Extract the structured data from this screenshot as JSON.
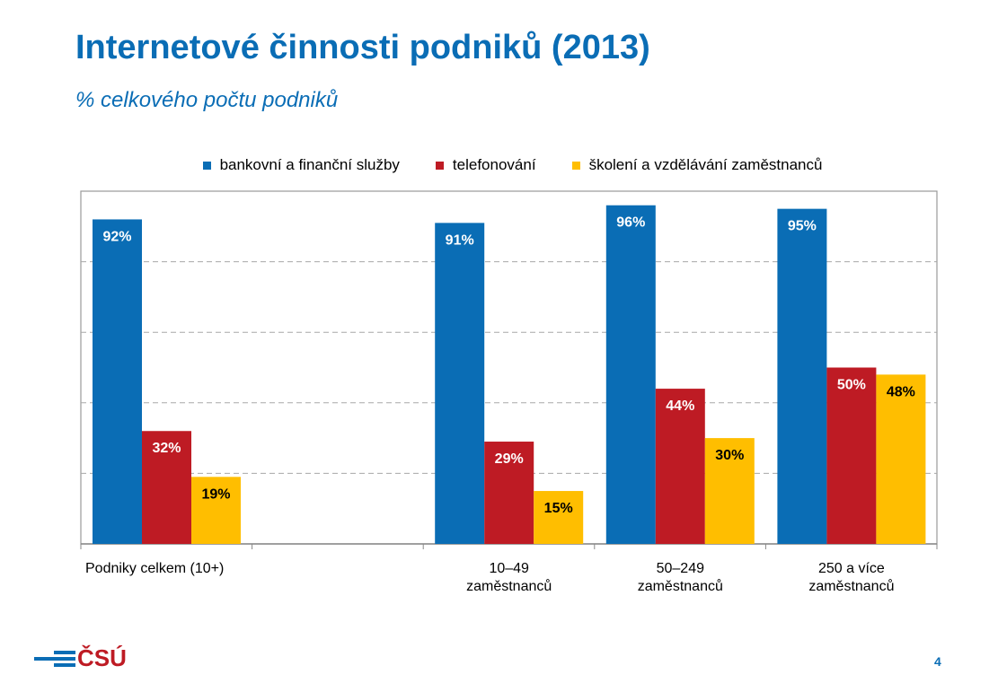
{
  "chart_data": {
    "type": "bar",
    "title": "Internetové činnosti podniků (2013)",
    "subtitle": "% celkového počtu podniků",
    "categories": [
      "Podniky celkem (10+)",
      "",
      "10–49\nzaměstnanců",
      "50–249\nzaměstnanců",
      "250 a více\nzaměstnanců"
    ],
    "series": [
      {
        "name": "bankovní a finanční služby",
        "color": "#0a6db5",
        "values": [
          92,
          null,
          91,
          96,
          95
        ],
        "labels": [
          "92%",
          "",
          "91%",
          "96%",
          "95%"
        ],
        "label_color": "#ffffff"
      },
      {
        "name": "telefonování",
        "color": "#be1b24",
        "values": [
          32,
          null,
          29,
          44,
          50
        ],
        "labels": [
          "32%",
          "",
          "29%",
          "44%",
          "50%"
        ],
        "label_color": "#ffffff"
      },
      {
        "name": "školení a vzdělávání zaměstnanců",
        "color": "#ffbe00",
        "values": [
          19,
          null,
          15,
          30,
          48
        ],
        "labels": [
          "19%",
          "",
          "15%",
          "30%",
          "48%"
        ],
        "label_color": "#000000"
      }
    ],
    "ylim": [
      0,
      100
    ],
    "y_gridlines": [
      20,
      40,
      60,
      80
    ],
    "grid": "dashed horizontal",
    "legend_placement": "top"
  },
  "footer": {
    "logo_text": "ČSÚ",
    "page_number": "4"
  }
}
